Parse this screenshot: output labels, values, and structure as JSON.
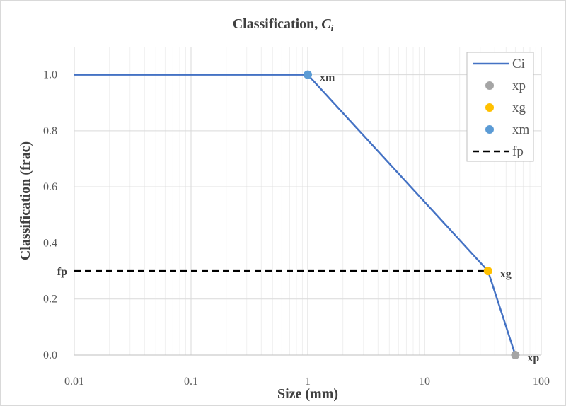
{
  "chart_data": {
    "type": "line",
    "title": "Classification,",
    "title_symbol": "C",
    "title_subscript": "i",
    "xlabel": "Size (mm)",
    "ylabel": "Classification (frac)",
    "xscale": "log",
    "xlim": [
      0.01,
      100
    ],
    "ylim": [
      0,
      1.1
    ],
    "xticks": [
      "0.01",
      "0.1",
      "1",
      "10",
      "100"
    ],
    "yticks": [
      "0.0",
      "0.2",
      "0.4",
      "0.6",
      "0.8",
      "1.0"
    ],
    "grid": true,
    "legend_position": "top-right",
    "series": [
      {
        "name": "Ci",
        "type": "line",
        "color": "#4472c4",
        "x": [
          0.01,
          1,
          35,
          60
        ],
        "y": [
          1.0,
          1.0,
          0.3,
          0.0
        ]
      },
      {
        "name": "xp",
        "type": "scatter",
        "color": "#a5a5a5",
        "x": [
          60
        ],
        "y": [
          0.0
        ],
        "label": "xp"
      },
      {
        "name": "xg",
        "type": "scatter",
        "color": "#ffc000",
        "x": [
          35
        ],
        "y": [
          0.3
        ],
        "label": "xg"
      },
      {
        "name": "xm",
        "type": "scatter",
        "color": "#5b9bd5",
        "x": [
          1
        ],
        "y": [
          1.0
        ],
        "label": "xm"
      },
      {
        "name": "fp",
        "type": "dashed-line",
        "color": "#000000",
        "x": [
          0.01,
          35
        ],
        "y": [
          0.3,
          0.3
        ],
        "label": "fp"
      }
    ]
  }
}
